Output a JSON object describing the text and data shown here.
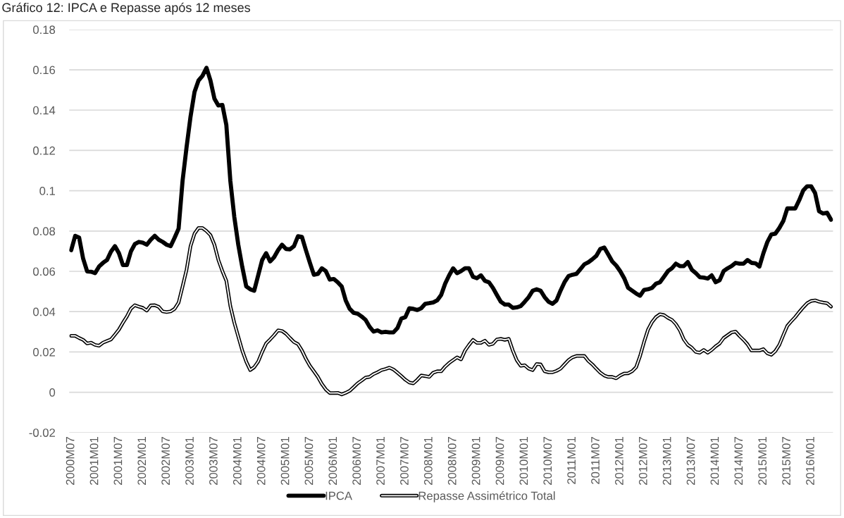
{
  "chart_data": {
    "type": "line",
    "title": "Gráfico 12: IPCA e Repasse após 12 meses",
    "categories": [
      "2000M07",
      null,
      null,
      null,
      null,
      null,
      "2001M01",
      null,
      null,
      null,
      null,
      null,
      "2001M07",
      null,
      null,
      null,
      null,
      null,
      "2002M01",
      null,
      null,
      null,
      null,
      null,
      "2002M07",
      null,
      null,
      null,
      null,
      null,
      "2003M01",
      null,
      null,
      null,
      null,
      null,
      "2003M07",
      null,
      null,
      null,
      null,
      null,
      "2004M01",
      null,
      null,
      null,
      null,
      null,
      "2004M07",
      null,
      null,
      null,
      null,
      null,
      "2005M01",
      null,
      null,
      null,
      null,
      null,
      "2005M07",
      null,
      null,
      null,
      null,
      null,
      "2006M01",
      null,
      null,
      null,
      null,
      null,
      "2006M07",
      null,
      null,
      null,
      null,
      null,
      "2007M01",
      null,
      null,
      null,
      null,
      null,
      "2007M07",
      null,
      null,
      null,
      null,
      null,
      "2008M01",
      null,
      null,
      null,
      null,
      null,
      "2008M07",
      null,
      null,
      null,
      null,
      null,
      "2009M01",
      null,
      null,
      null,
      null,
      null,
      "2009M07",
      null,
      null,
      null,
      null,
      null,
      "2010M01",
      null,
      null,
      null,
      null,
      null,
      "2010M07",
      null,
      null,
      null,
      null,
      null,
      "2011M01",
      null,
      null,
      null,
      null,
      null,
      "2011M07",
      null,
      null,
      null,
      null,
      null,
      "2012M01",
      null,
      null,
      null,
      null,
      null,
      "2012M07",
      null,
      null,
      null,
      null,
      null,
      "2013M01",
      null,
      null,
      null,
      null,
      null,
      "2013M07",
      null,
      null,
      null,
      null,
      null,
      "2014M01",
      null,
      null,
      null,
      null,
      null,
      "2014M07",
      null,
      null,
      null,
      null,
      null,
      "2015M01",
      null,
      null,
      null,
      null,
      null,
      "2015M07",
      null,
      null,
      null,
      null,
      null,
      "2016M01",
      null,
      null,
      null,
      null,
      null
    ],
    "series": [
      {
        "name": "IPCA",
        "color": "#000000",
        "values": [
          0.0705,
          0.0776,
          0.0767,
          0.0663,
          0.06,
          0.0598,
          0.0591,
          0.0624,
          0.0642,
          0.0656,
          0.0698,
          0.0725,
          0.069,
          0.0631,
          0.0631,
          0.0698,
          0.0735,
          0.0746,
          0.0742,
          0.0732,
          0.0757,
          0.0776,
          0.0757,
          0.0746,
          0.0732,
          0.0725,
          0.0767,
          0.0812,
          0.105,
          0.1216,
          0.1368,
          0.149,
          0.1547,
          0.157,
          0.161,
          0.1547,
          0.1457,
          0.1423,
          0.1426,
          0.1326,
          0.105,
          0.087,
          0.0732,
          0.0622,
          0.0525,
          0.0511,
          0.0504,
          0.058,
          0.0656,
          0.069,
          0.0649,
          0.067,
          0.0705,
          0.0732,
          0.0711,
          0.0709,
          0.0725,
          0.0774,
          0.0771,
          0.0705,
          0.0642,
          0.0583,
          0.0587,
          0.0615,
          0.0601,
          0.0559,
          0.0562,
          0.0546,
          0.0525,
          0.0456,
          0.0414,
          0.0394,
          0.039,
          0.0376,
          0.0359,
          0.0325,
          0.0301,
          0.0307,
          0.0297,
          0.03,
          0.0297,
          0.0297,
          0.0318,
          0.0366,
          0.0373,
          0.0417,
          0.0414,
          0.0408,
          0.0417,
          0.0439,
          0.0442,
          0.0446,
          0.0456,
          0.0483,
          0.0539,
          0.058,
          0.0615,
          0.0591,
          0.0601,
          0.0615,
          0.0615,
          0.0573,
          0.0566,
          0.058,
          0.0553,
          0.0546,
          0.0518,
          0.0483,
          0.0449,
          0.0435,
          0.0435,
          0.0419,
          0.0421,
          0.0428,
          0.0449,
          0.0472,
          0.0504,
          0.0511,
          0.0504,
          0.0472,
          0.0449,
          0.0439,
          0.0456,
          0.0504,
          0.0546,
          0.0576,
          0.0583,
          0.0587,
          0.0611,
          0.0635,
          0.0645,
          0.066,
          0.0677,
          0.0711,
          0.0718,
          0.0684,
          0.0649,
          0.0629,
          0.0601,
          0.0566,
          0.0518,
          0.0504,
          0.049,
          0.0479,
          0.0508,
          0.0511,
          0.0518,
          0.0539,
          0.0546,
          0.0573,
          0.0601,
          0.0615,
          0.0638,
          0.0626,
          0.0626,
          0.0646,
          0.0608,
          0.0591,
          0.0571,
          0.0569,
          0.0564,
          0.058,
          0.0546,
          0.0556,
          0.0601,
          0.0615,
          0.0626,
          0.0642,
          0.0638,
          0.0638,
          0.0656,
          0.0642,
          0.064,
          0.0624,
          0.069,
          0.0746,
          0.0783,
          0.0787,
          0.0815,
          0.085,
          0.0912,
          0.0912,
          0.0912,
          0.0953,
          0.1001,
          0.1022,
          0.1022,
          0.0988,
          0.0898,
          0.0887,
          0.0891,
          0.0856
        ]
      },
      {
        "name": "Repasse Assimétrico Total",
        "color": "#000000",
        "values": [
          0.028,
          0.028,
          0.0269,
          0.026,
          0.0242,
          0.0246,
          0.0235,
          0.0231,
          0.0246,
          0.0254,
          0.0262,
          0.0286,
          0.0311,
          0.0345,
          0.0376,
          0.0414,
          0.0432,
          0.0425,
          0.0419,
          0.0405,
          0.0431,
          0.0432,
          0.0424,
          0.0401,
          0.0398,
          0.0401,
          0.0414,
          0.0445,
          0.0525,
          0.0608,
          0.0725,
          0.0787,
          0.0815,
          0.0815,
          0.08,
          0.078,
          0.0732,
          0.0656,
          0.0601,
          0.0553,
          0.0428,
          0.0345,
          0.0276,
          0.0207,
          0.0152,
          0.011,
          0.0124,
          0.0152,
          0.02,
          0.0242,
          0.0262,
          0.0283,
          0.0307,
          0.0304,
          0.029,
          0.0269,
          0.0249,
          0.0239,
          0.0207,
          0.0166,
          0.0131,
          0.0104,
          0.0076,
          0.0041,
          0.0014,
          -0.0004,
          -0.0004,
          -0.0003,
          -0.0011,
          -0.0003,
          0.0007,
          0.0025,
          0.0044,
          0.0058,
          0.0073,
          0.0076,
          0.009,
          0.0099,
          0.011,
          0.0115,
          0.0122,
          0.0113,
          0.0097,
          0.008,
          0.0062,
          0.0048,
          0.0044,
          0.0062,
          0.0083,
          0.008,
          0.0076,
          0.0097,
          0.0104,
          0.0104,
          0.0127,
          0.0145,
          0.0159,
          0.0173,
          0.0163,
          0.0207,
          0.0235,
          0.026,
          0.0245,
          0.0245,
          0.0256,
          0.0235,
          0.024,
          0.0262,
          0.0265,
          0.026,
          0.0265,
          0.0207,
          0.0159,
          0.0131,
          0.0134,
          0.0117,
          0.011,
          0.014,
          0.0138,
          0.0104,
          0.0099,
          0.0099,
          0.0106,
          0.0117,
          0.0138,
          0.0159,
          0.0173,
          0.018,
          0.018,
          0.018,
          0.0155,
          0.0138,
          0.0117,
          0.0097,
          0.0083,
          0.0076,
          0.0076,
          0.0069,
          0.0083,
          0.0093,
          0.0094,
          0.0104,
          0.0124,
          0.018,
          0.0249,
          0.0311,
          0.0348,
          0.0373,
          0.0387,
          0.0383,
          0.0369,
          0.0359,
          0.0338,
          0.0307,
          0.0262,
          0.0235,
          0.0221,
          0.02,
          0.0196,
          0.021,
          0.0196,
          0.021,
          0.0228,
          0.0242,
          0.0269,
          0.0283,
          0.0297,
          0.0301,
          0.0279,
          0.026,
          0.0238,
          0.0207,
          0.0207,
          0.0207,
          0.0214,
          0.0193,
          0.0186,
          0.0204,
          0.0235,
          0.0283,
          0.0329,
          0.0352,
          0.0373,
          0.0398,
          0.0421,
          0.0442,
          0.0453,
          0.0456,
          0.0449,
          0.0445,
          0.0442,
          0.0425
        ]
      }
    ],
    "ylim": [
      -0.02,
      0.18
    ],
    "yticks": [
      {
        "value": -0.02,
        "label": "-0.02"
      },
      0,
      0.02,
      0.04,
      0.06,
      0.08,
      {
        "value": 0.1,
        "label": "0.1"
      },
      0.12,
      0.14,
      0.16,
      0.18
    ],
    "grid": "y",
    "legend": "bottom",
    "marker": "none",
    "line_style": "solid"
  }
}
